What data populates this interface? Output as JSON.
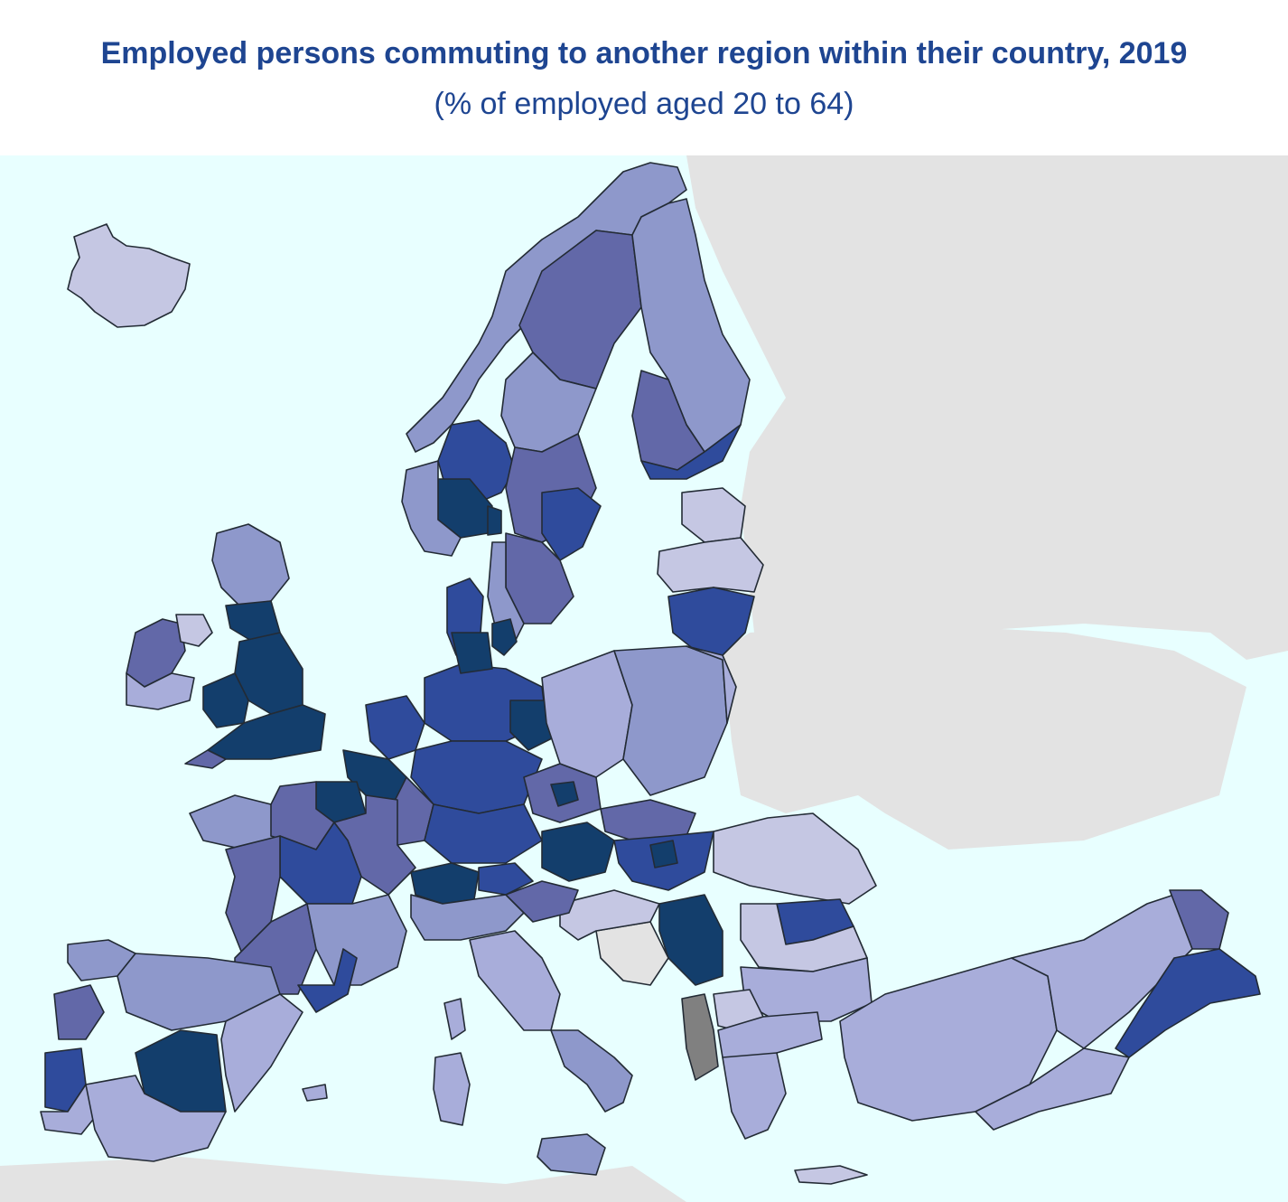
{
  "title": "Employed persons commuting to another region within their country, 2019",
  "subtitle": "(% of employed aged 20 to 64)",
  "colors": {
    "sea": "#e8ffff",
    "non_eu_land": "#e3e3e3",
    "border": "#232b35",
    "no_data": "#808080",
    "class_1_lightest": "#c5c7e3",
    "class_2": "#a8adda",
    "class_3": "#8e98cb",
    "class_4": "#6268a8",
    "class_5": "#2f4b9c",
    "class_6_darkest": "#133e6c",
    "title_text": "#1e4591"
  }
}
